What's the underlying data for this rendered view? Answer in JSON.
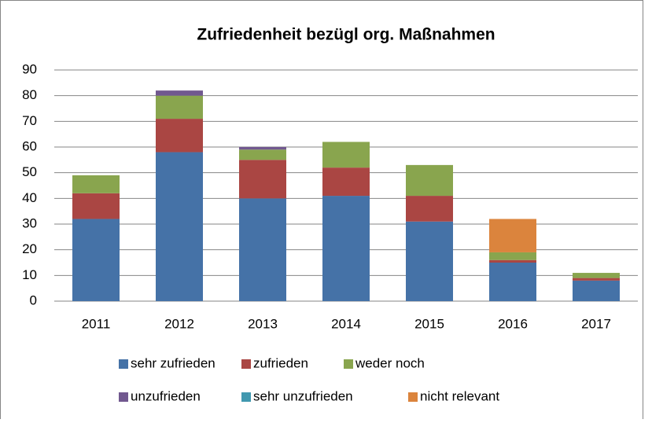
{
  "chart_data": {
    "type": "bar",
    "stacked": true,
    "title": "Zufriedenheit bezügl org. Maßnahmen",
    "categories": [
      "2011",
      "2012",
      "2013",
      "2014",
      "2015",
      "2016",
      "2017"
    ],
    "series": [
      {
        "name": "sehr zufrieden",
        "color": "#4572a7",
        "values": [
          32,
          58,
          40,
          41,
          31,
          15,
          8
        ]
      },
      {
        "name": "zufrieden",
        "color": "#aa4643",
        "values": [
          10,
          13,
          15,
          11,
          10,
          1,
          1
        ]
      },
      {
        "name": "weder noch",
        "color": "#89a54e",
        "values": [
          7,
          9,
          4,
          10,
          12,
          3,
          2
        ]
      },
      {
        "name": "unzufrieden",
        "color": "#71588f",
        "values": [
          0,
          2,
          1,
          0,
          0,
          0,
          0
        ]
      },
      {
        "name": "sehr unzufrieden",
        "color": "#4198af",
        "values": [
          0,
          0,
          0,
          0,
          0,
          0,
          0
        ]
      },
      {
        "name": "nicht relevant",
        "color": "#db843d",
        "values": [
          0,
          0,
          0,
          0,
          0,
          13,
          0
        ]
      }
    ],
    "ylim": [
      0,
      90
    ],
    "yticks": [
      0,
      10,
      20,
      30,
      40,
      50,
      60,
      70,
      80,
      90
    ],
    "grid": true,
    "legend": "bottom"
  }
}
